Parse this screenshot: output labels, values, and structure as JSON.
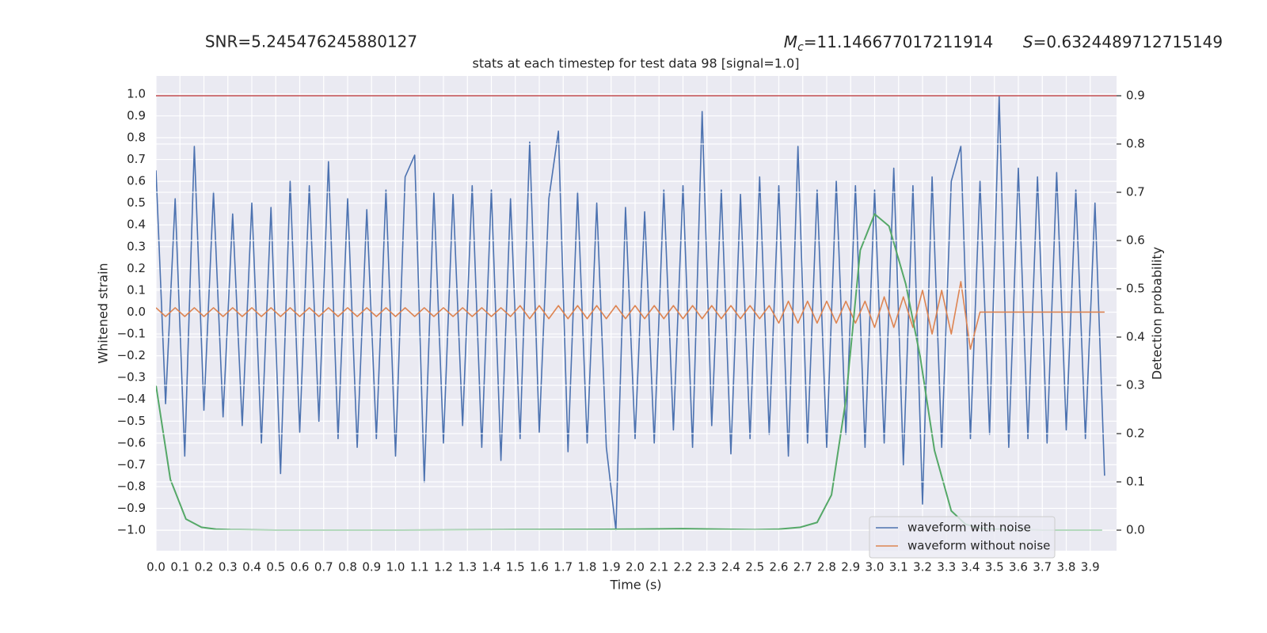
{
  "chart_data": {
    "type": "line",
    "annotations": {
      "snr": "SNR=5.245476245880127",
      "mc_symbol": "M",
      "mc_subscript": "c",
      "mc_text": "=11.146677017211914",
      "s_symbol": "S",
      "s_text": "=0.6324489712715149"
    },
    "title": "stats at each timestep for test data 98 [signal=1.0]",
    "xlabel": "Time (s)",
    "ylabel": "Whitened strain",
    "y2label": "Detection probability",
    "xlim": [
      0,
      4.01
    ],
    "ylim": [
      -1.094,
      1.083
    ],
    "y2lim": [
      -0.0426,
      0.941
    ],
    "xticks": [
      {
        "value": 0,
        "label": "0.0"
      },
      0.1,
      0.2,
      0.3,
      0.4,
      0.5,
      0.6,
      0.7,
      0.8,
      0.9,
      {
        "value": 1,
        "label": "1.0"
      },
      1.1,
      1.2,
      1.3,
      1.4,
      1.5,
      1.6,
      1.7,
      1.8,
      1.9,
      {
        "value": 2,
        "label": "2.0"
      },
      2.1,
      2.2,
      2.3,
      2.4,
      2.5,
      2.6,
      2.7,
      2.8,
      2.9,
      {
        "value": 3,
        "label": "3.0"
      },
      3.1,
      3.2,
      3.3,
      3.4,
      3.5,
      3.6,
      3.7,
      3.8,
      3.9
    ],
    "yticks": [
      {
        "value": -1,
        "label": "−1.0"
      },
      {
        "value": -0.9,
        "label": "−0.9"
      },
      {
        "value": -0.8,
        "label": "−0.8"
      },
      {
        "value": -0.7,
        "label": "−0.7"
      },
      {
        "value": -0.6,
        "label": "−0.6"
      },
      {
        "value": -0.5,
        "label": "−0.5"
      },
      {
        "value": -0.4,
        "label": "−0.4"
      },
      {
        "value": -0.3,
        "label": "−0.3"
      },
      {
        "value": -0.2,
        "label": "−0.2"
      },
      {
        "value": -0.1,
        "label": "−0.1"
      },
      {
        "value": 0,
        "label": "0.0"
      },
      0.1,
      0.2,
      0.3,
      0.4,
      0.5,
      0.6,
      0.7,
      0.8,
      0.9,
      {
        "value": 1,
        "label": "1.0"
      }
    ],
    "y2ticks": [
      {
        "value": 0,
        "label": "0.0"
      },
      0.1,
      0.2,
      0.3,
      0.4,
      0.5,
      0.6,
      0.7,
      0.8,
      0.9
    ],
    "grid": true,
    "legend": "lower right",
    "threshold": {
      "value": 0.9,
      "axis": "y2",
      "color": "#c44e52"
    },
    "x": [
      0,
      0.04,
      0.08,
      0.12,
      0.16,
      0.2,
      0.24,
      0.28,
      0.32,
      0.36,
      0.4,
      0.44,
      0.48,
      0.52,
      0.56,
      0.6,
      0.64,
      0.68,
      0.72,
      0.76,
      0.8,
      0.84,
      0.88,
      0.92,
      0.96,
      1,
      1.04,
      1.08,
      1.12,
      1.16,
      1.2,
      1.24,
      1.28,
      1.32,
      1.36,
      1.4,
      1.44,
      1.48,
      1.52,
      1.56,
      1.6,
      1.64,
      1.68,
      1.72,
      1.76,
      1.8,
      1.84,
      1.88,
      1.92,
      1.96,
      2,
      2.04,
      2.08,
      2.12,
      2.16,
      2.2,
      2.24,
      2.28,
      2.32,
      2.36,
      2.4,
      2.44,
      2.48,
      2.52,
      2.56,
      2.6,
      2.64,
      2.68,
      2.72,
      2.76,
      2.8,
      2.84,
      2.88,
      2.92,
      2.96,
      3,
      3.04,
      3.08,
      3.12,
      3.16,
      3.2,
      3.24,
      3.28,
      3.32,
      3.36,
      3.4,
      3.44,
      3.48,
      3.52,
      3.56,
      3.6,
      3.64,
      3.68,
      3.72,
      3.76,
      3.8,
      3.84,
      3.88,
      3.92,
      3.96
    ],
    "series": [
      {
        "name": "waveform with noise",
        "color": "#4c72b0",
        "values": [
          0.65,
          -0.42,
          0.52,
          -0.66,
          0.76,
          -0.45,
          0.55,
          -0.48,
          0.45,
          -0.52,
          0.5,
          -0.6,
          0.48,
          -0.74,
          0.6,
          -0.55,
          0.58,
          -0.5,
          0.69,
          -0.58,
          0.52,
          -0.62,
          0.47,
          -0.58,
          0.56,
          -0.66,
          0.62,
          0.72,
          -0.78,
          0.55,
          -0.6,
          0.54,
          -0.52,
          0.58,
          -0.62,
          0.56,
          -0.68,
          0.52,
          -0.58,
          0.78,
          -0.55,
          0.52,
          0.83,
          -0.64,
          0.55,
          -0.6,
          0.5,
          -0.62,
          -1.0,
          0.48,
          -0.58,
          0.46,
          -0.6,
          0.56,
          -0.54,
          0.58,
          -0.62,
          0.92,
          -0.52,
          0.56,
          -0.65,
          0.54,
          -0.58,
          0.62,
          -0.56,
          0.58,
          -0.66,
          0.76,
          -0.6,
          0.56,
          -0.62,
          0.6,
          -0.56,
          0.58,
          -0.62,
          0.56,
          -0.6,
          0.66,
          -0.7,
          0.58,
          -0.88,
          0.62,
          -0.62,
          0.6,
          0.76,
          -0.58,
          0.6,
          -0.56,
          0.99,
          -0.62,
          0.66,
          -0.58,
          0.62,
          -0.6,
          0.64,
          -0.54,
          0.56,
          -0.58,
          0.5,
          -0.75
        ]
      },
      {
        "name": "waveform without noise",
        "color": "#dd8452",
        "values": [
          0.02,
          -0.02,
          0.02,
          -0.02,
          0.02,
          -0.02,
          0.02,
          -0.02,
          0.02,
          -0.02,
          0.02,
          -0.02,
          0.02,
          -0.02,
          0.02,
          -0.02,
          0.02,
          -0.02,
          0.02,
          -0.02,
          0.02,
          -0.02,
          0.02,
          -0.02,
          0.02,
          -0.02,
          0.02,
          -0.02,
          0.02,
          -0.02,
          0.02,
          -0.02,
          0.02,
          -0.02,
          0.02,
          -0.02,
          0.02,
          -0.02,
          0.03,
          -0.03,
          0.03,
          -0.03,
          0.03,
          -0.03,
          0.03,
          -0.03,
          0.03,
          -0.03,
          0.03,
          -0.03,
          0.03,
          -0.03,
          0.03,
          -0.03,
          0.03,
          -0.03,
          0.03,
          -0.03,
          0.03,
          -0.03,
          0.03,
          -0.03,
          0.03,
          -0.03,
          0.03,
          -0.05,
          0.05,
          -0.05,
          0.05,
          -0.05,
          0.05,
          -0.05,
          0.05,
          -0.05,
          0.05,
          -0.07,
          0.07,
          -0.07,
          0.07,
          -0.07,
          0.1,
          -0.1,
          0.1,
          -0.1,
          0.14,
          -0.17,
          0,
          0,
          0,
          0,
          0,
          0,
          0,
          0,
          0,
          0,
          0,
          0,
          0,
          0
        ]
      },
      {
        "color": "#55a868",
        "axis": "y2",
        "x": [
          0,
          0.06,
          0.125,
          0.19,
          0.25,
          0.31,
          0.5,
          1,
          1.5,
          2,
          2.2,
          2.5,
          2.6,
          2.69,
          2.76,
          2.82,
          2.88,
          2.94,
          3,
          3.06,
          3.13,
          3.19,
          3.25,
          3.32,
          3.38,
          3.44,
          3.5,
          3.7,
          3.95
        ],
        "values": [
          0.3,
          0.105,
          0.023,
          0.006,
          0.002,
          0.001,
          0,
          0,
          0.001,
          0.002,
          0.003,
          0.001,
          0.002,
          0.006,
          0.016,
          0.073,
          0.27,
          0.58,
          0.655,
          0.63,
          0.51,
          0.36,
          0.165,
          0.04,
          0.012,
          0.004,
          0.002,
          0,
          0
        ]
      }
    ]
  }
}
